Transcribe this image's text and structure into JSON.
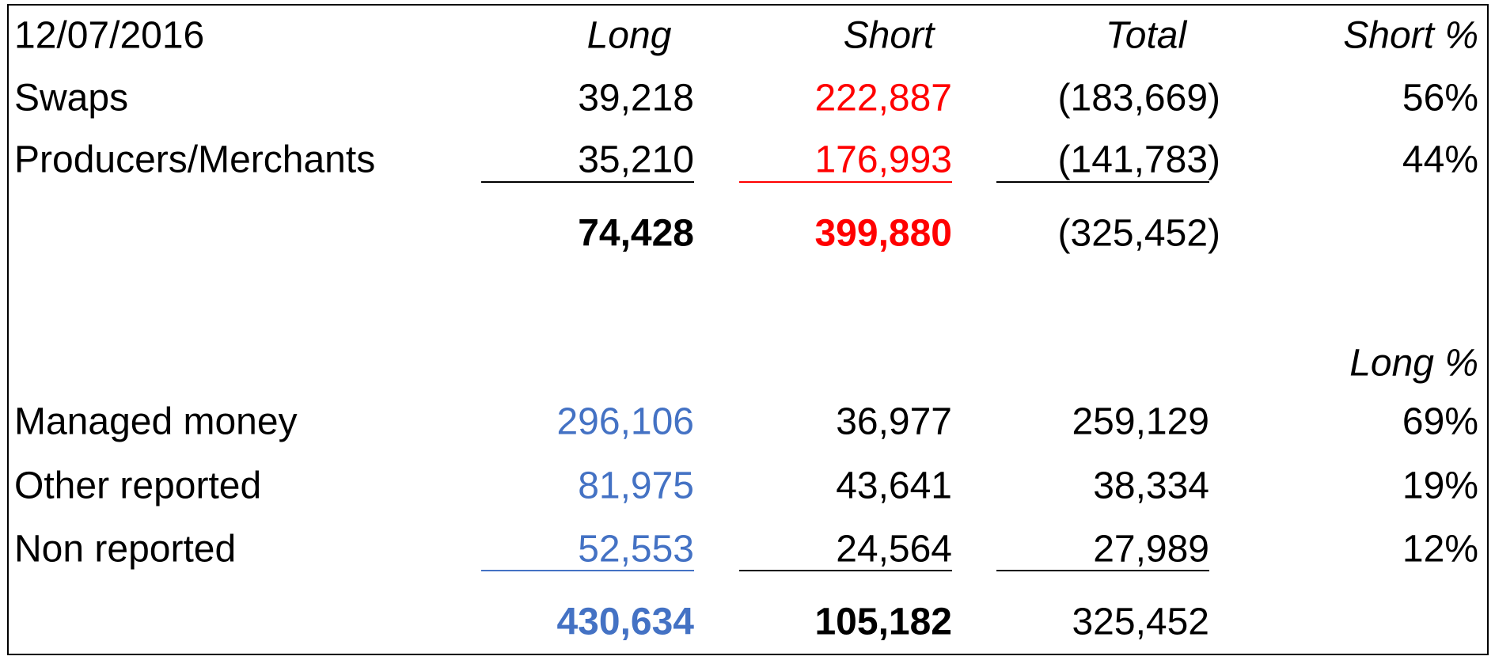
{
  "header": {
    "date": "12/07/2016",
    "columns": [
      "Long",
      "Short",
      "Total",
      "Short %"
    ]
  },
  "rows": [
    {
      "label": "Swaps",
      "cells": [
        "39,218",
        "222,887",
        "(183,669)",
        "56%"
      ]
    },
    {
      "label": "Producers/Merchants",
      "cells": [
        "35,210",
        "176,993",
        "(141,783)",
        "44%"
      ]
    }
  ],
  "subtotal": [
    "74,428",
    "399,880",
    "(325,452)"
  ],
  "second_header": "Long %",
  "rows2": [
    {
      "label": "Managed money",
      "cells": [
        "296,106",
        "36,977",
        "259,129",
        "69%"
      ]
    },
    {
      "label": "Other reported",
      "cells": [
        "81,975",
        "43,641",
        "38,334",
        "19%"
      ]
    },
    {
      "label": "Non reported",
      "cells": [
        "52,553",
        "24,564",
        "27,989",
        "12%"
      ]
    }
  ],
  "total": [
    "430,634",
    "105,182",
    "325,452"
  ]
}
